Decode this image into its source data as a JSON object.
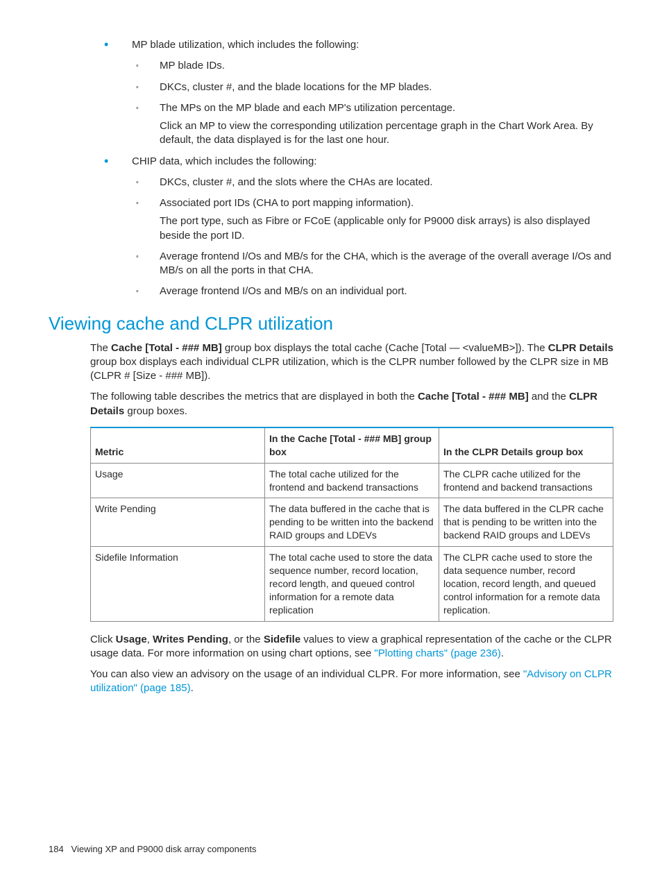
{
  "lists": {
    "top": [
      {
        "lead": "MP blade utilization, which includes the following:",
        "sub": [
          {
            "text": "MP blade IDs."
          },
          {
            "text": "DKCs, cluster #, and the blade locations for the MP blades."
          },
          {
            "text": "The MPs on the MP blade and each MP's utilization percentage.",
            "extra": "Click an MP to view the corresponding utilization percentage graph in the Chart Work Area. By default, the data displayed is for the last one hour."
          }
        ]
      },
      {
        "lead": "CHIP data, which includes the following:",
        "sub": [
          {
            "text": "DKCs, cluster #, and the slots where the CHAs are located."
          },
          {
            "text": "Associated port IDs (CHA to port mapping information).",
            "extra": "The port type, such as Fibre or FCoE (applicable only for P9000 disk arrays) is also displayed beside the port ID."
          },
          {
            "text": "Average frontend I/Os and MB/s for the CHA, which is the average of the overall average I/Os and MB/s on all the ports in that CHA."
          },
          {
            "text": "Average frontend I/Os and MB/s on an individual port."
          }
        ]
      }
    ]
  },
  "section": {
    "heading": "Viewing cache and CLPR utilization",
    "para1": {
      "a": "The ",
      "b1": "Cache [Total - ### MB]",
      "c": " group box displays the total cache (Cache [Total — <valueMB>]). The ",
      "b2": "CLPR Details",
      "d": " group box displays each individual CLPR utilization, which is the CLPR number followed by the CLPR size in MB (CLPR # [Size - ### MB])."
    },
    "para2": {
      "a": "The following table describes the metrics that are displayed in both the ",
      "b1": "Cache [Total - ### MB]",
      "c": " and the ",
      "b2": "CLPR Details",
      "d": " group boxes."
    },
    "table": {
      "type": "table",
      "border_color": "#8a8a8a",
      "header_top_border": "#0096d6",
      "columns": [
        "Metric",
        "In the Cache [Total - ### MB] group box",
        "In the CLPR Details group box"
      ],
      "rows": [
        [
          "Usage",
          "The total cache utilized for the frontend and backend transactions",
          "The CLPR cache utilized for the frontend and backend transactions"
        ],
        [
          "Write Pending",
          "The data buffered in the cache that is pending to be written into the backend RAID groups and LDEVs",
          "The data buffered in the CLPR cache that is pending to be written into the backend RAID groups and LDEVs"
        ],
        [
          "Sidefile Information",
          "The total cache used to store the data sequence number, record location, record length, and queued control information for a remote data replication",
          "The CLPR cache used to store the data sequence number, record location, record length, and queued control information for a remote data replication."
        ]
      ]
    },
    "para3": {
      "a": "Click ",
      "b1": "Usage",
      "c": ", ",
      "b2": "Writes Pending",
      "d": ", or the ",
      "b3": "Sidefile",
      "e": " values to view a graphical representation of the cache or the CLPR usage data. For more information on using chart options, see ",
      "link1": "\"Plotting charts\" (page 236)",
      "f": "."
    },
    "para4": {
      "a": "You can also view an advisory on the usage of an individual CLPR. For more information, see ",
      "link1": "\"Advisory on CLPR utilization\" (page 185)",
      "b": "."
    }
  },
  "footer": {
    "page_number": "184",
    "chapter": "Viewing XP and P9000 disk array components"
  },
  "colors": {
    "accent": "#0096d6",
    "text": "#2a2a2a",
    "table_border": "#8a8a8a",
    "background": "#ffffff"
  }
}
